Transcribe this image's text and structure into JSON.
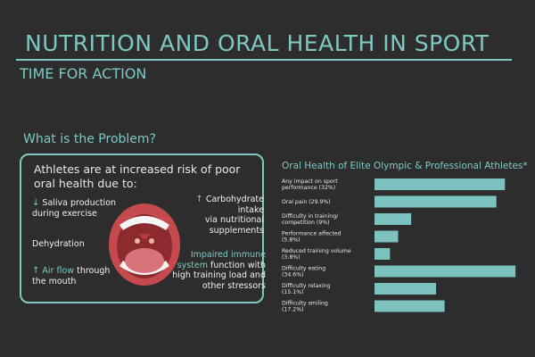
{
  "header": {
    "title": "NUTRITION AND ORAL HEALTH IN SPORT",
    "subtitle": "TIME FOR ACTION"
  },
  "problem": {
    "heading": "What is the Problem?",
    "intro": "Athletes are at increased risk of poor oral health due to:",
    "factors": {
      "saliva": {
        "arrow": "↓",
        "strong": "Saliva production",
        "rest": "during exercise"
      },
      "carb": {
        "arrow": "↑",
        "strong": "Carbohydrate intake",
        "rest": "via nutritional supplements"
      },
      "dehydration": {
        "text": "Dehydration"
      },
      "airflow": {
        "arrow": "↑",
        "strong": "Air flow",
        "rest1": "through",
        "rest2": "the mouth"
      },
      "immune": {
        "strong": "Impaired immune system",
        "rest": "function with high training load and other stressors"
      }
    }
  },
  "colors": {
    "accent": "#7ec8c4",
    "bar": "#7cc3c0",
    "background": "#2d2d2d"
  },
  "chart_data": {
    "type": "bar",
    "orientation": "horizontal",
    "title": "Oral Health of Elite Olympic & Professional Athletes*",
    "categories": [
      "Any impact on sport performance (32%)",
      "Oral pain (29.9%)",
      "Difficulty in training/ competition (9%)",
      "Performance affected (5.8%)",
      "Reduced training volume (3.8%)",
      "Difficulty eating (34.6%)",
      "Difficulty relaxing (15.1%)",
      "Difficulty smiling (17.2%)"
    ],
    "values": [
      32,
      29.9,
      9,
      5.8,
      3.8,
      34.6,
      15.1,
      17.2
    ],
    "units": "%",
    "xlim": [
      0,
      35
    ],
    "grid": false,
    "legend": "none"
  }
}
